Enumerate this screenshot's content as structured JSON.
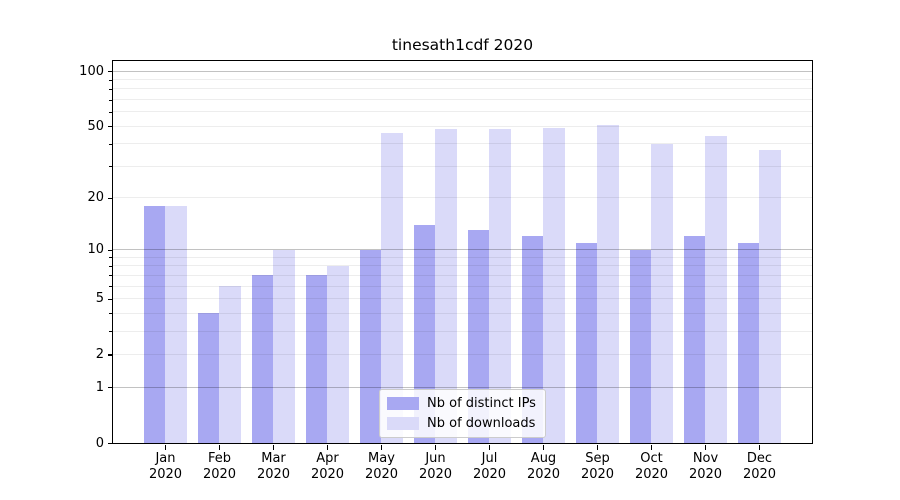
{
  "chart_data": {
    "type": "bar",
    "title": "tinesath1cdf 2020",
    "categories": [
      {
        "month": "Jan",
        "year": "2020"
      },
      {
        "month": "Feb",
        "year": "2020"
      },
      {
        "month": "Mar",
        "year": "2020"
      },
      {
        "month": "Apr",
        "year": "2020"
      },
      {
        "month": "May",
        "year": "2020"
      },
      {
        "month": "Jun",
        "year": "2020"
      },
      {
        "month": "Jul",
        "year": "2020"
      },
      {
        "month": "Aug",
        "year": "2020"
      },
      {
        "month": "Sep",
        "year": "2020"
      },
      {
        "month": "Oct",
        "year": "2020"
      },
      {
        "month": "Nov",
        "year": "2020"
      },
      {
        "month": "Dec",
        "year": "2020"
      }
    ],
    "series": [
      {
        "name": "Nb of distinct IPs",
        "color": "#a8a8f2",
        "values": [
          18,
          4,
          7,
          7,
          10,
          14,
          13,
          12,
          11,
          10,
          12,
          11
        ]
      },
      {
        "name": "Nb of downloads",
        "color": "#dadaf9",
        "values": [
          18,
          6,
          10,
          8,
          46,
          48,
          48,
          49,
          51,
          40,
          44,
          37
        ]
      }
    ],
    "xlabel": "",
    "ylabel": "",
    "yscale": "log1p",
    "ylim": [
      0,
      113.6
    ],
    "yticks": [
      0,
      1,
      2,
      5,
      10,
      20,
      50,
      100
    ],
    "major_grid": [
      1,
      10,
      100
    ],
    "minor_grid": [
      2,
      3,
      4,
      5,
      6,
      7,
      8,
      9,
      20,
      30,
      40,
      50,
      60,
      70,
      80,
      90
    ],
    "grid": true,
    "legend_position": "lower center"
  }
}
